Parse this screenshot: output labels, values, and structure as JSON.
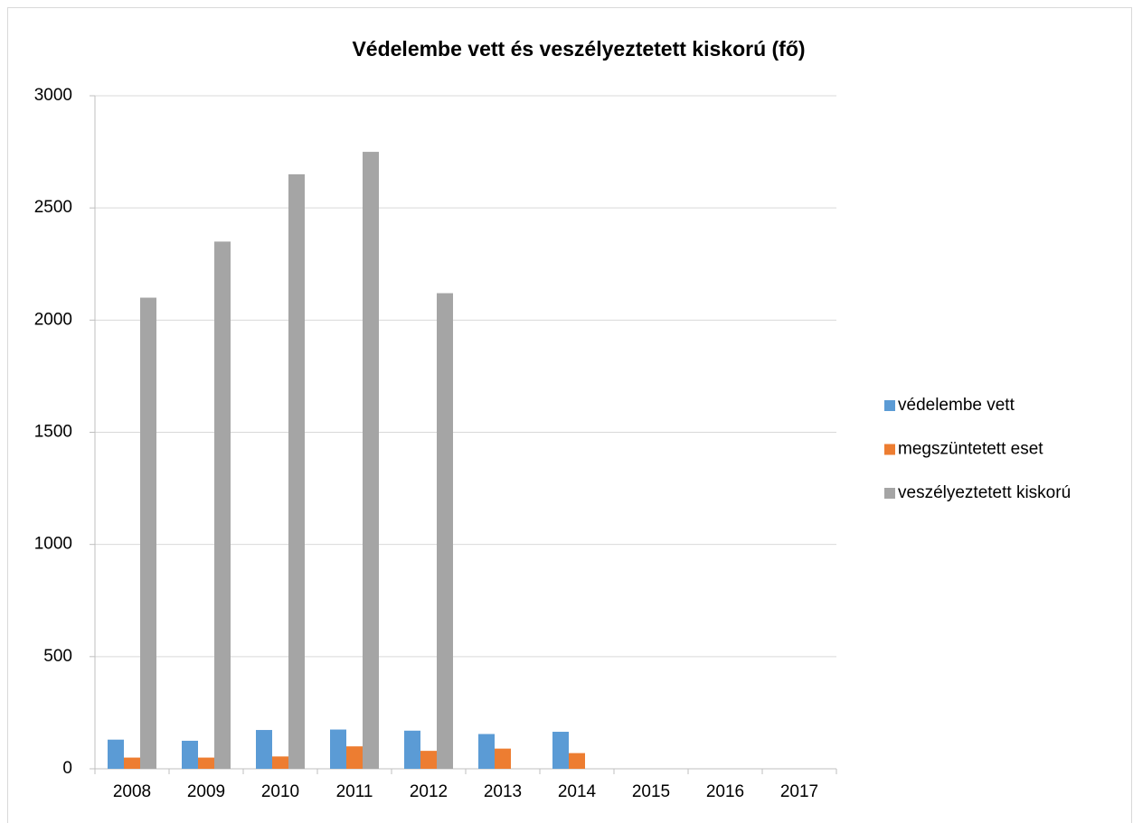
{
  "chart_data": {
    "type": "bar",
    "title": "Védelembe vett és veszélyeztetett kiskorú (fő)",
    "categories": [
      "2008",
      "2009",
      "2010",
      "2011",
      "2012",
      "2013",
      "2014",
      "2015",
      "2016",
      "2017"
    ],
    "series": [
      {
        "name": "védelembe vett",
        "color": "#5b9bd5",
        "values": [
          130,
          125,
          173,
          175,
          170,
          155,
          165,
          null,
          null,
          null
        ]
      },
      {
        "name": "megszüntetett eset",
        "color": "#ed7d31",
        "values": [
          50,
          50,
          55,
          100,
          80,
          90,
          70,
          null,
          null,
          null
        ]
      },
      {
        "name": "veszélyeztetett kiskorú",
        "color": "#a5a5a5",
        "values": [
          2100,
          2350,
          2650,
          2750,
          2120,
          null,
          null,
          null,
          null,
          null
        ]
      }
    ],
    "ylim": [
      0,
      3000
    ],
    "yticks": [
      0,
      500,
      1000,
      1500,
      2000,
      2500,
      3000
    ],
    "grid": true,
    "legend": "right"
  }
}
